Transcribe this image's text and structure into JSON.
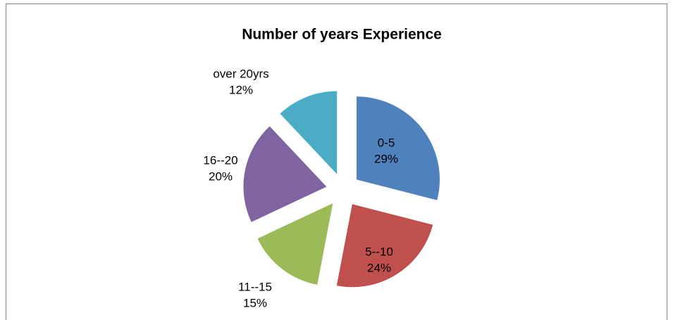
{
  "chart_data": {
    "type": "pie",
    "title": "Number of years Experience",
    "categories": [
      "0-5",
      "5--10",
      "11--15",
      "16--20",
      "over 20yrs"
    ],
    "values": [
      29,
      24,
      15,
      20,
      12
    ],
    "value_labels": [
      "29%",
      "24%",
      "15%",
      "20%",
      "12%"
    ],
    "colors": [
      "#4f81bd",
      "#c0504d",
      "#9bbb59",
      "#8064a2",
      "#4bacc6"
    ],
    "exploded": true
  }
}
